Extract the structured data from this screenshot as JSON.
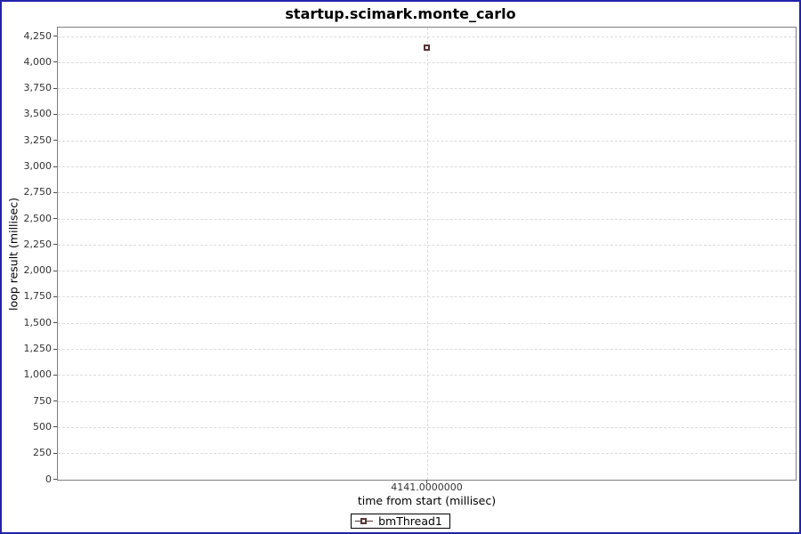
{
  "window": {
    "border_color": "#2222aa",
    "background_color": "#ffffff"
  },
  "style": {
    "plot_border_color": "#7f7f7f",
    "gridline_color": "#dcdcdc",
    "tick_label_color": "#333333",
    "series_outline_color": "#5a3333",
    "series_fill_color": "#eaf5ec"
  },
  "chart_data": {
    "type": "scatter",
    "title": "startup.scimark.monte_carlo",
    "xlabel": "time from start (millisec)",
    "ylabel": "loop result (millisec)",
    "xticks": [
      4141.0
    ],
    "xtick_labels": [
      "4141.0000000"
    ],
    "yticks": [
      0,
      250,
      500,
      750,
      1000,
      1250,
      1500,
      1750,
      2000,
      2250,
      2500,
      2750,
      3000,
      3250,
      3500,
      3750,
      4000,
      4250
    ],
    "ytick_labels": [
      "0",
      "250",
      "500",
      "750",
      "1,000",
      "1,250",
      "1,500",
      "1,750",
      "2,000",
      "2,250",
      "2,500",
      "2,750",
      "3,000",
      "3,250",
      "3,500",
      "3,750",
      "4,000",
      "4,250"
    ],
    "ylim": [
      0,
      4336
    ],
    "grid": "dashed",
    "legend_position": "bottom",
    "series": [
      {
        "name": "bmThread1",
        "color": "#5a3333",
        "fill": "#eaf5ec",
        "marker": "square",
        "points": [
          {
            "x": 4141.0,
            "y": 4141
          }
        ]
      }
    ]
  }
}
